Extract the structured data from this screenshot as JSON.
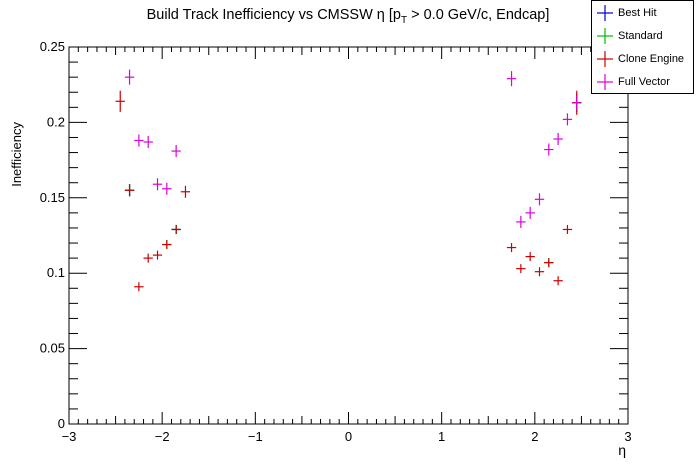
{
  "chart_data": {
    "type": "scatter",
    "title_main": "Build Track Inefficiency vs CMSSW η [p",
    "title_sub": "T",
    "title_tail": " > 0.0 GeV/c, Endcap]",
    "xlabel": "η",
    "ylabel": "Inefficiency",
    "xlim": [
      -3,
      3
    ],
    "ylim": [
      0,
      0.25
    ],
    "xticks": [
      -3,
      -2,
      -1,
      0,
      1,
      2,
      3
    ],
    "xtick_labels": [
      "−3",
      "−2",
      "−1",
      "0",
      "1",
      "2",
      "3"
    ],
    "yticks": [
      0,
      0.05,
      0.1,
      0.15,
      0.2,
      0.25
    ],
    "ytick_labels": [
      "0",
      "0.05",
      "0.1",
      "0.15",
      "0.2",
      "0.25"
    ],
    "legend_position": "top-right",
    "series": [
      {
        "name": "Best Hit",
        "color": "#0000cc",
        "points": [
          [
            -2.35,
            0.155,
            0.004
          ],
          [
            -1.85,
            0.129,
            0.003
          ],
          [
            2.45,
            0.213,
            0.006
          ]
        ]
      },
      {
        "name": "Standard",
        "color": "#00bb00",
        "points": [
          [
            -2.35,
            0.155,
            0.004
          ],
          [
            -1.95,
            0.119,
            0.003
          ],
          [
            -1.85,
            0.129,
            0.003
          ],
          [
            2.15,
            0.107,
            0.003
          ],
          [
            2.45,
            0.213,
            0.006
          ]
        ]
      },
      {
        "name": "Clone Engine",
        "color": "#cc0000",
        "points": [
          [
            -2.45,
            0.214,
            0.007
          ],
          [
            -2.35,
            0.155,
            0.004
          ],
          [
            -2.25,
            0.091,
            0.003
          ],
          [
            -2.15,
            0.11,
            0.003
          ],
          [
            -2.05,
            0.112,
            0.003
          ],
          [
            -1.95,
            0.119,
            0.003
          ],
          [
            -1.85,
            0.129,
            0.003
          ],
          [
            -1.75,
            0.154,
            0.004
          ],
          [
            1.75,
            0.117,
            0.003
          ],
          [
            1.85,
            0.103,
            0.003
          ],
          [
            1.95,
            0.111,
            0.003
          ],
          [
            2.05,
            0.101,
            0.003
          ],
          [
            2.15,
            0.107,
            0.003
          ],
          [
            2.25,
            0.095,
            0.003
          ],
          [
            2.35,
            0.129,
            0.003
          ],
          [
            2.45,
            0.213,
            0.008
          ]
        ]
      },
      {
        "name": "Full Vector",
        "color": "#dd00dd",
        "points": [
          [
            -2.35,
            0.23,
            0.005
          ],
          [
            -2.25,
            0.188,
            0.004
          ],
          [
            -2.15,
            0.187,
            0.004
          ],
          [
            -2.05,
            0.159,
            0.004
          ],
          [
            -1.95,
            0.156,
            0.004
          ],
          [
            -1.85,
            0.181,
            0.004
          ],
          [
            1.75,
            0.229,
            0.005
          ],
          [
            1.85,
            0.134,
            0.004
          ],
          [
            1.95,
            0.14,
            0.004
          ],
          [
            2.05,
            0.149,
            0.004
          ],
          [
            2.15,
            0.182,
            0.004
          ],
          [
            2.25,
            0.189,
            0.004
          ],
          [
            2.35,
            0.202,
            0.004
          ],
          [
            2.45,
            0.213,
            0.005
          ]
        ]
      }
    ]
  }
}
